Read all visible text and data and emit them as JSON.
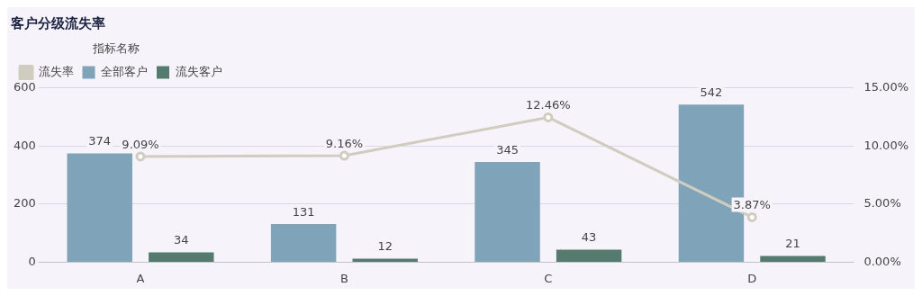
{
  "chart_data": {
    "type": "bar",
    "title": "客户分级流失率",
    "legend_title": "指标名称",
    "categories": [
      "A",
      "B",
      "C",
      "D"
    ],
    "series": [
      {
        "name": "全部客户",
        "color": "#7fa3b8",
        "values": [
          374,
          131,
          345,
          542
        ]
      },
      {
        "name": "流失客户",
        "color": "#557a6e",
        "values": [
          34,
          12,
          43,
          21
        ]
      },
      {
        "name": "流失率",
        "type": "line",
        "axis": "y2",
        "color": "#d0ccc0",
        "values": [
          9.09,
          9.16,
          12.46,
          3.87
        ],
        "value_labels": [
          "9.09%",
          "9.16%",
          "12.46%",
          "3.87%"
        ]
      }
    ],
    "data_labels": true,
    "ylim": [
      0,
      600
    ],
    "yticks": [
      0,
      200,
      400,
      600
    ],
    "y2lim": [
      0,
      15
    ],
    "y2ticks": [
      {
        "value": 0,
        "label": "0.00%"
      },
      {
        "value": 5,
        "label": "5.00%"
      },
      {
        "value": 10,
        "label": "10.00%"
      },
      {
        "value": 15,
        "label": "15.00%"
      }
    ],
    "grid": "y",
    "legend": "top left",
    "marker": "circle",
    "line_style": "solid"
  }
}
